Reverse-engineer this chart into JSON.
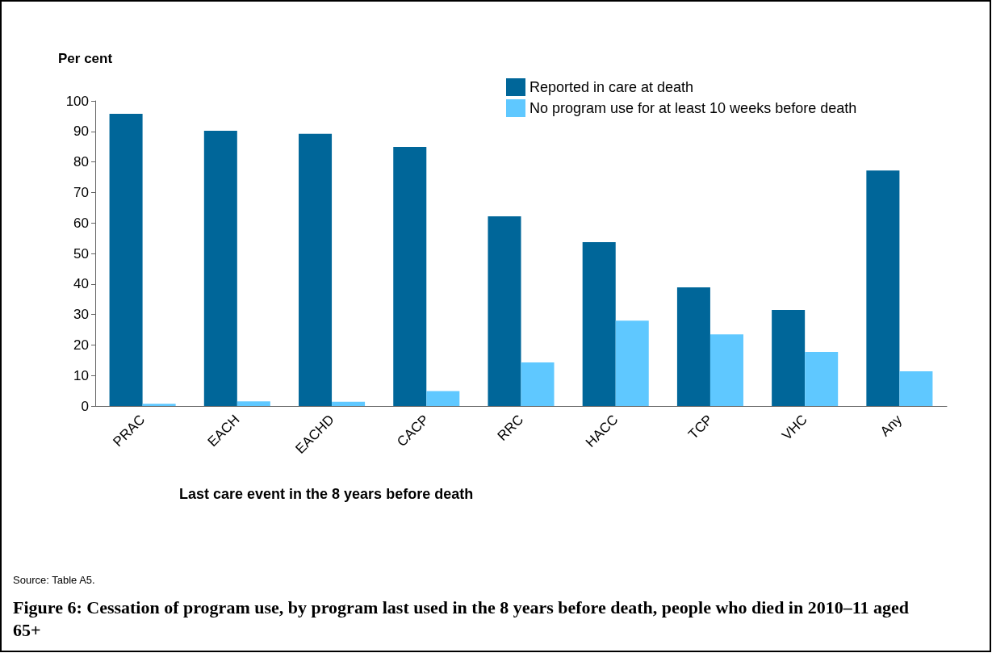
{
  "chart_data": {
    "type": "bar",
    "title": "Figure 6: Cessation of program use, by program last used in the 8 years before death, people who died in 2010–11 aged 65+",
    "xlabel": "Last care event in the 8 years before death",
    "ylabel": "Per cent",
    "annotations": [
      "Source: Table A5."
    ],
    "categories": [
      "PRAC",
      "EACH",
      "EACHD",
      "CACP",
      "RRC",
      "HACC",
      "TCP",
      "VHC",
      "Any"
    ],
    "series": [
      {
        "name": "Reported in care at death",
        "color": "#006699",
        "values": [
          95.8,
          90.2,
          89.2,
          84.9,
          62.2,
          53.7,
          38.9,
          31.5,
          77.2
        ]
      },
      {
        "name": "No program use for at least 10 weeks before death",
        "color": "#5fc8ff",
        "values": [
          0.7,
          1.5,
          1.4,
          4.9,
          14.3,
          28.0,
          23.5,
          17.7,
          11.4
        ]
      }
    ],
    "ylim": [
      0,
      100
    ],
    "yticks": [
      0,
      10,
      20,
      30,
      40,
      50,
      60,
      70,
      80,
      90,
      100
    ],
    "grid": false,
    "legend": "top right"
  }
}
